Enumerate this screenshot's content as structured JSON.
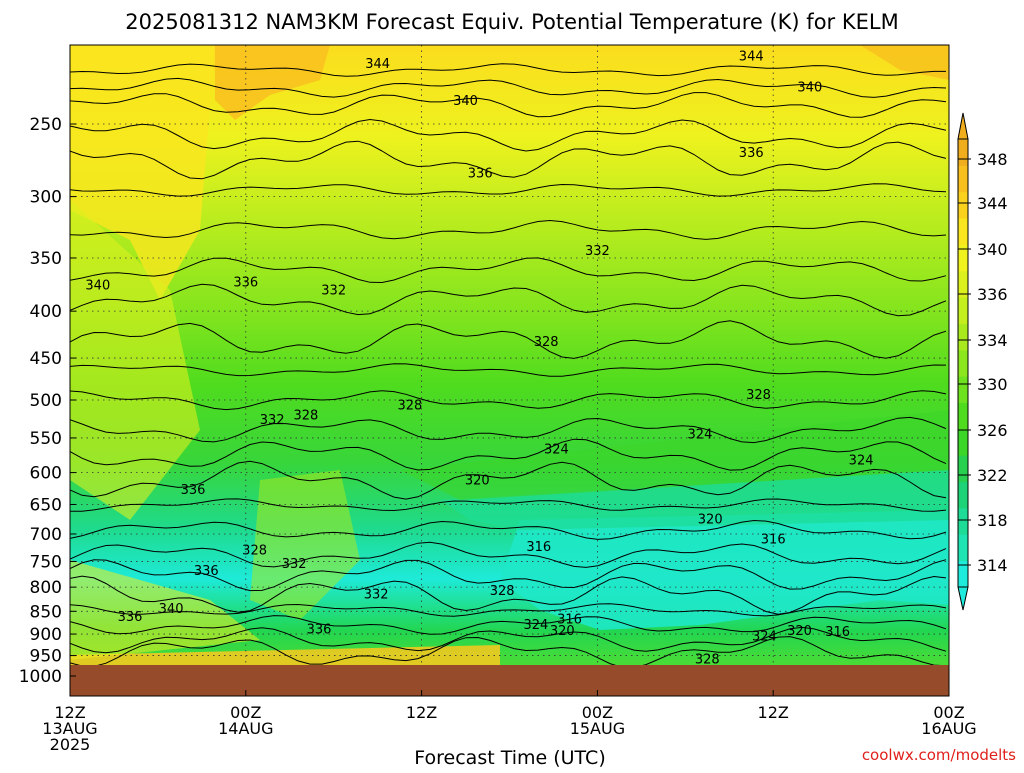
{
  "chart_data": {
    "type": "heatmap",
    "title": "2025081312 NAM3KM Forecast Equiv. Potential Temperature (K) for KELM",
    "xlabel": "Forecast Time (UTC)",
    "ylabel": "",
    "credit": "coolwx.com/modelts",
    "y_axis": {
      "scale": "log",
      "range": [
        210,
        1035
      ],
      "ticks": [
        "250",
        "300",
        "350",
        "400",
        "450",
        "500",
        "550",
        "600",
        "650",
        "700",
        "750",
        "800",
        "850",
        "900",
        "950",
        "1000"
      ],
      "tick_values": [
        250,
        300,
        350,
        400,
        450,
        500,
        550,
        600,
        650,
        700,
        750,
        800,
        850,
        900,
        950,
        1000
      ],
      "grid": true
    },
    "x_axis": {
      "range_hours": [
        0,
        60
      ],
      "ticks": [
        {
          "hour": 0,
          "lines": [
            "12Z",
            "13AUG",
            "2025"
          ]
        },
        {
          "hour": 12,
          "lines": [
            "00Z",
            "14AUG"
          ]
        },
        {
          "hour": 24,
          "lines": [
            "12Z"
          ]
        },
        {
          "hour": 36,
          "lines": [
            "00Z",
            "15AUG"
          ]
        },
        {
          "hour": 48,
          "lines": [
            "12Z"
          ]
        },
        {
          "hour": 60,
          "lines": [
            "00Z",
            "16AUG"
          ]
        }
      ],
      "grid": true
    },
    "colorbar": {
      "units": "K",
      "labels": [
        "348",
        "344",
        "340",
        "336",
        "334",
        "330",
        "326",
        "322",
        "318",
        "314"
      ],
      "label_values": [
        348,
        344,
        340,
        336,
        334,
        330,
        326,
        322,
        318,
        314
      ],
      "levels": [
        314,
        316,
        318,
        320,
        322,
        324,
        326,
        328,
        330,
        332,
        334,
        336,
        338,
        340,
        342,
        344,
        346,
        348
      ],
      "colors": [
        "#1eebdc",
        "#1ee4b4",
        "#1edc96",
        "#1ed278",
        "#28d050",
        "#3cd628",
        "#50dc1e",
        "#6ee21e",
        "#8ce61e",
        "#a8ea1e",
        "#c4ee1e",
        "#dcf01e",
        "#f0f21e",
        "#fae61e",
        "#fad21e",
        "#f8c01e",
        "#f0ae1e"
      ],
      "extend": "both"
    },
    "contour_labels": [
      {
        "t": 21,
        "p": 215,
        "value": "344"
      },
      {
        "t": 46.5,
        "p": 211,
        "value": "344"
      },
      {
        "t": 27,
        "p": 236,
        "value": "340"
      },
      {
        "t": 50.5,
        "p": 228,
        "value": "340"
      },
      {
        "t": 28,
        "p": 283,
        "value": "336"
      },
      {
        "t": 46.5,
        "p": 269,
        "value": "336"
      },
      {
        "t": 1.9,
        "p": 375,
        "value": "340"
      },
      {
        "t": 12,
        "p": 372,
        "value": "336"
      },
      {
        "t": 18,
        "p": 380,
        "value": "332"
      },
      {
        "t": 36,
        "p": 344,
        "value": "332"
      },
      {
        "t": 32.5,
        "p": 432,
        "value": "328"
      },
      {
        "t": 47,
        "p": 494,
        "value": "328"
      },
      {
        "t": 13.8,
        "p": 526,
        "value": "332"
      },
      {
        "t": 16.1,
        "p": 520,
        "value": "328"
      },
      {
        "t": 23.2,
        "p": 507,
        "value": "328"
      },
      {
        "t": 33.2,
        "p": 566,
        "value": "324"
      },
      {
        "t": 43,
        "p": 545,
        "value": "324"
      },
      {
        "t": 54,
        "p": 582,
        "value": "324"
      },
      {
        "t": 27.8,
        "p": 612,
        "value": "320"
      },
      {
        "t": 43.7,
        "p": 675,
        "value": "320"
      },
      {
        "t": 48,
        "p": 710,
        "value": "316"
      },
      {
        "t": 32,
        "p": 723,
        "value": "316"
      },
      {
        "t": 8.4,
        "p": 627,
        "value": "336"
      },
      {
        "t": 9.3,
        "p": 768,
        "value": "336"
      },
      {
        "t": 12.6,
        "p": 730,
        "value": "328"
      },
      {
        "t": 15.3,
        "p": 755,
        "value": "332"
      },
      {
        "t": 20.9,
        "p": 815,
        "value": "332"
      },
      {
        "t": 29.5,
        "p": 808,
        "value": "328"
      },
      {
        "t": 6.9,
        "p": 845,
        "value": "340"
      },
      {
        "t": 4.1,
        "p": 862,
        "value": "336"
      },
      {
        "t": 17,
        "p": 890,
        "value": "336"
      },
      {
        "t": 31.8,
        "p": 880,
        "value": "324"
      },
      {
        "t": 33.6,
        "p": 893,
        "value": "320"
      },
      {
        "t": 34.1,
        "p": 868,
        "value": "316"
      },
      {
        "t": 47.4,
        "p": 905,
        "value": "324"
      },
      {
        "t": 49.8,
        "p": 893,
        "value": "320"
      },
      {
        "t": 52.4,
        "p": 895,
        "value": "316"
      },
      {
        "t": 43.5,
        "p": 960,
        "value": "328"
      }
    ]
  }
}
